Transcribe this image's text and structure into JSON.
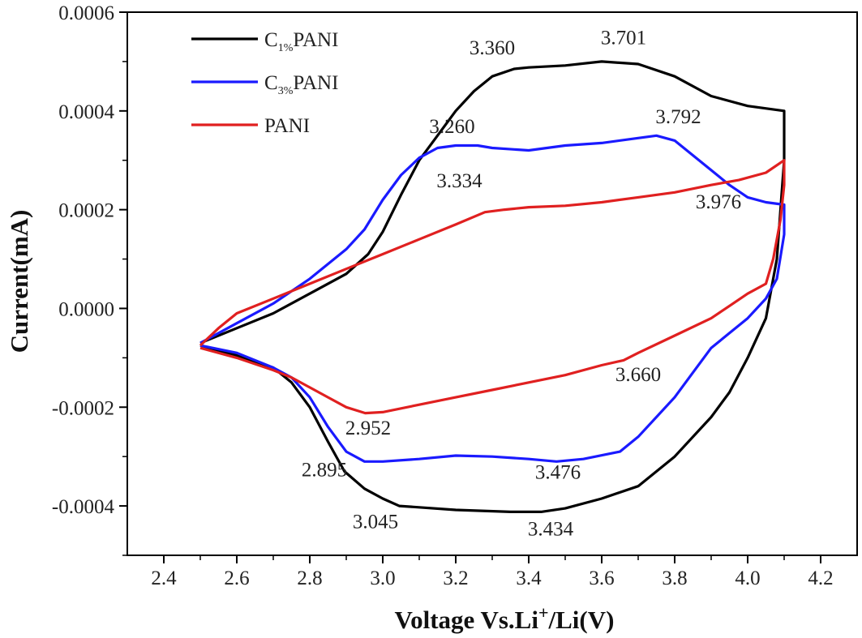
{
  "chart_data": {
    "type": "line",
    "xlabel": "Voltage Vs.Li+/Li(V)",
    "xlabel_parts": {
      "main": "Voltage Vs.Li",
      "sup": "+",
      "rest": "/Li(V)"
    },
    "ylabel": "Current(mA)",
    "xlim": [
      2.3,
      4.3
    ],
    "ylim": [
      -0.0005,
      0.0006
    ],
    "x_ticks": [
      "2.4",
      "2.6",
      "2.8",
      "3.0",
      "3.2",
      "3.4",
      "3.6",
      "3.8",
      "4.0",
      "4.2"
    ],
    "y_ticks": [
      "0.0006",
      "0.0004",
      "0.0002",
      "0.0000",
      "-0.0002",
      "-0.0004"
    ],
    "grid": false,
    "legend_position": "top-left",
    "series": [
      {
        "name": "C1%PANI",
        "legend_main": "C",
        "legend_sub": "1%",
        "legend_rest": "PANI",
        "color": "#000000",
        "points": [
          [
            2.5,
            -7e-05
          ],
          [
            2.6,
            -4e-05
          ],
          [
            2.7,
            -1e-05
          ],
          [
            2.8,
            3e-05
          ],
          [
            2.9,
            7e-05
          ],
          [
            2.96,
            0.00011
          ],
          [
            3.0,
            0.000155
          ],
          [
            3.05,
            0.00023
          ],
          [
            3.1,
            0.0003
          ],
          [
            3.15,
            0.00035
          ],
          [
            3.2,
            0.0004
          ],
          [
            3.25,
            0.00044
          ],
          [
            3.3,
            0.00047
          ],
          [
            3.36,
            0.000485
          ],
          [
            3.4,
            0.000488
          ],
          [
            3.5,
            0.000492
          ],
          [
            3.6,
            0.0005
          ],
          [
            3.7,
            0.000495
          ],
          [
            3.8,
            0.00047
          ],
          [
            3.9,
            0.00043
          ],
          [
            4.0,
            0.00041
          ],
          [
            4.1,
            0.0004
          ],
          [
            4.1,
            0.0003
          ],
          [
            4.08,
            0.0001
          ],
          [
            4.05,
            -2e-05
          ],
          [
            4.0,
            -0.0001
          ],
          [
            3.95,
            -0.00017
          ],
          [
            3.9,
            -0.00022
          ],
          [
            3.8,
            -0.0003
          ],
          [
            3.7,
            -0.00036
          ],
          [
            3.6,
            -0.000385
          ],
          [
            3.5,
            -0.000405
          ],
          [
            3.434,
            -0.000412
          ],
          [
            3.35,
            -0.000412
          ],
          [
            3.2,
            -0.000408
          ],
          [
            3.045,
            -0.0004
          ],
          [
            3.0,
            -0.000385
          ],
          [
            2.95,
            -0.000365
          ],
          [
            2.895,
            -0.00033
          ],
          [
            2.85,
            -0.00027
          ],
          [
            2.8,
            -0.0002
          ],
          [
            2.75,
            -0.00015
          ],
          [
            2.7,
            -0.00012
          ],
          [
            2.6,
            -9.5e-05
          ],
          [
            2.5,
            -7.5e-05
          ]
        ]
      },
      {
        "name": "C3%PANI",
        "legend_main": "C",
        "legend_sub": "3%",
        "legend_rest": "PANI",
        "color": "#1a1aff",
        "points": [
          [
            2.5,
            -7e-05
          ],
          [
            2.6,
            -3e-05
          ],
          [
            2.7,
            1e-05
          ],
          [
            2.8,
            6e-05
          ],
          [
            2.9,
            0.00012
          ],
          [
            2.95,
            0.00016
          ],
          [
            3.0,
            0.00022
          ],
          [
            3.05,
            0.00027
          ],
          [
            3.1,
            0.000305
          ],
          [
            3.15,
            0.000325
          ],
          [
            3.2,
            0.00033
          ],
          [
            3.26,
            0.00033
          ],
          [
            3.3,
            0.000325
          ],
          [
            3.4,
            0.00032
          ],
          [
            3.5,
            0.00033
          ],
          [
            3.6,
            0.000335
          ],
          [
            3.7,
            0.000345
          ],
          [
            3.75,
            0.00035
          ],
          [
            3.8,
            0.00034
          ],
          [
            3.85,
            0.00031
          ],
          [
            3.9,
            0.00028
          ],
          [
            3.95,
            0.00025
          ],
          [
            4.0,
            0.000225
          ],
          [
            4.05,
            0.000215
          ],
          [
            4.1,
            0.00021
          ],
          [
            4.1,
            0.00015
          ],
          [
            4.08,
            6e-05
          ],
          [
            4.05,
            2e-05
          ],
          [
            4.0,
            -2e-05
          ],
          [
            3.95,
            -5e-05
          ],
          [
            3.9,
            -8e-05
          ],
          [
            3.85,
            -0.00013
          ],
          [
            3.8,
            -0.00018
          ],
          [
            3.7,
            -0.00026
          ],
          [
            3.65,
            -0.00029
          ],
          [
            3.55,
            -0.000305
          ],
          [
            3.476,
            -0.00031
          ],
          [
            3.4,
            -0.000305
          ],
          [
            3.3,
            -0.0003
          ],
          [
            3.2,
            -0.000298
          ],
          [
            3.1,
            -0.000305
          ],
          [
            3.0,
            -0.00031
          ],
          [
            2.95,
            -0.00031
          ],
          [
            2.9,
            -0.00029
          ],
          [
            2.85,
            -0.00024
          ],
          [
            2.8,
            -0.00018
          ],
          [
            2.75,
            -0.00014
          ],
          [
            2.7,
            -0.00012
          ],
          [
            2.6,
            -9e-05
          ],
          [
            2.5,
            -7.5e-05
          ]
        ]
      },
      {
        "name": "PANI",
        "legend_main": "PANI",
        "legend_sub": "",
        "legend_rest": "",
        "color": "#e02020",
        "points": [
          [
            2.5,
            -7.5e-05
          ],
          [
            2.55,
            -4e-05
          ],
          [
            2.6,
            -1e-05
          ],
          [
            2.7,
            2e-05
          ],
          [
            2.8,
            5e-05
          ],
          [
            2.9,
            8e-05
          ],
          [
            3.0,
            0.00011
          ],
          [
            3.1,
            0.00014
          ],
          [
            3.2,
            0.00017
          ],
          [
            3.28,
            0.000195
          ],
          [
            3.334,
            0.0002
          ],
          [
            3.4,
            0.000205
          ],
          [
            3.5,
            0.000208
          ],
          [
            3.6,
            0.000215
          ],
          [
            3.7,
            0.000225
          ],
          [
            3.8,
            0.000235
          ],
          [
            3.9,
            0.00025
          ],
          [
            3.976,
            0.00026
          ],
          [
            4.05,
            0.000275
          ],
          [
            4.1,
            0.0003
          ],
          [
            4.1,
            0.00025
          ],
          [
            4.09,
            0.00018
          ],
          [
            4.07,
            0.0001
          ],
          [
            4.05,
            5e-05
          ],
          [
            4.0,
            3e-05
          ],
          [
            3.95,
            5e-06
          ],
          [
            3.9,
            -2e-05
          ],
          [
            3.8,
            -5.5e-05
          ],
          [
            3.7,
            -9e-05
          ],
          [
            3.66,
            -0.000105
          ],
          [
            3.6,
            -0.000115
          ],
          [
            3.5,
            -0.000135
          ],
          [
            3.4,
            -0.00015
          ],
          [
            3.3,
            -0.000165
          ],
          [
            3.2,
            -0.00018
          ],
          [
            3.1,
            -0.000195
          ],
          [
            3.0,
            -0.00021
          ],
          [
            2.952,
            -0.000212
          ],
          [
            2.9,
            -0.0002
          ],
          [
            2.85,
            -0.00018
          ],
          [
            2.8,
            -0.00016
          ],
          [
            2.75,
            -0.00014
          ],
          [
            2.7,
            -0.000125
          ],
          [
            2.6,
            -0.0001
          ],
          [
            2.5,
            -8e-05
          ]
        ]
      }
    ],
    "annotations": [
      {
        "text": "3.360",
        "x": 3.3,
        "y": 0.000515
      },
      {
        "text": "3.701",
        "x": 3.66,
        "y": 0.000535
      },
      {
        "text": "3.260",
        "x": 3.19,
        "y": 0.000355
      },
      {
        "text": "3.792",
        "x": 3.81,
        "y": 0.000375
      },
      {
        "text": "3.334",
        "x": 3.21,
        "y": 0.000245
      },
      {
        "text": "3.976",
        "x": 3.92,
        "y": 0.000203
      },
      {
        "text": "3.660",
        "x": 3.7,
        "y": -0.000147
      },
      {
        "text": "2.952",
        "x": 2.96,
        "y": -0.000255
      },
      {
        "text": "2.895",
        "x": 2.84,
        "y": -0.00034
      },
      {
        "text": "3.476",
        "x": 3.48,
        "y": -0.000345
      },
      {
        "text": "3.045",
        "x": 2.98,
        "y": -0.000445
      },
      {
        "text": "3.434",
        "x": 3.46,
        "y": -0.00046
      }
    ]
  }
}
